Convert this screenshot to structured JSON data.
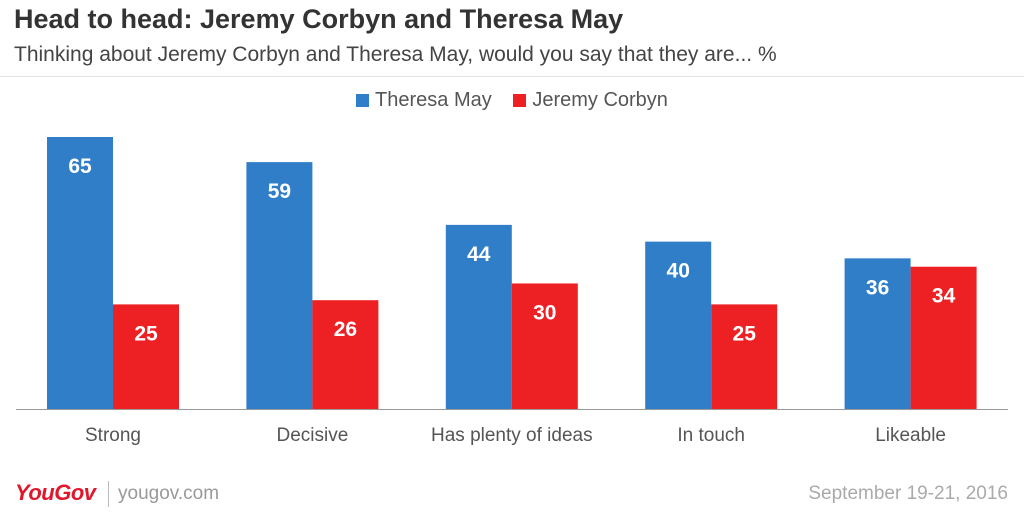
{
  "header": {
    "title": "Head to head: Jeremy Corbyn and Theresa May",
    "subtitle": "Thinking about Jeremy Corbyn and Theresa May, would you say that they are... %"
  },
  "footer": {
    "logo": "YouGov",
    "url": "yougov.com",
    "date": "September 19-21, 2016"
  },
  "colors": {
    "theresa_may": "#2f7ec7",
    "jeremy_corbyn": "#ed2024"
  },
  "chart_data": {
    "type": "bar",
    "title": "Head to head: Jeremy Corbyn and Theresa May",
    "subtitle": "Thinking about Jeremy Corbyn and Theresa May, would you say that they are... %",
    "categories": [
      "Strong",
      "Decisive",
      "Has plenty of ideas",
      "In touch",
      "Likeable"
    ],
    "series": [
      {
        "name": "Theresa May",
        "values": [
          65,
          59,
          44,
          40,
          36
        ],
        "color": "#2f7ec7"
      },
      {
        "name": "Jeremy Corbyn",
        "values": [
          25,
          26,
          30,
          25,
          34
        ],
        "color": "#ed2024"
      }
    ],
    "xlabel": "",
    "ylabel": "",
    "ylim": [
      0,
      65
    ],
    "grid": false,
    "legend": "top-center",
    "data_labels": true
  }
}
